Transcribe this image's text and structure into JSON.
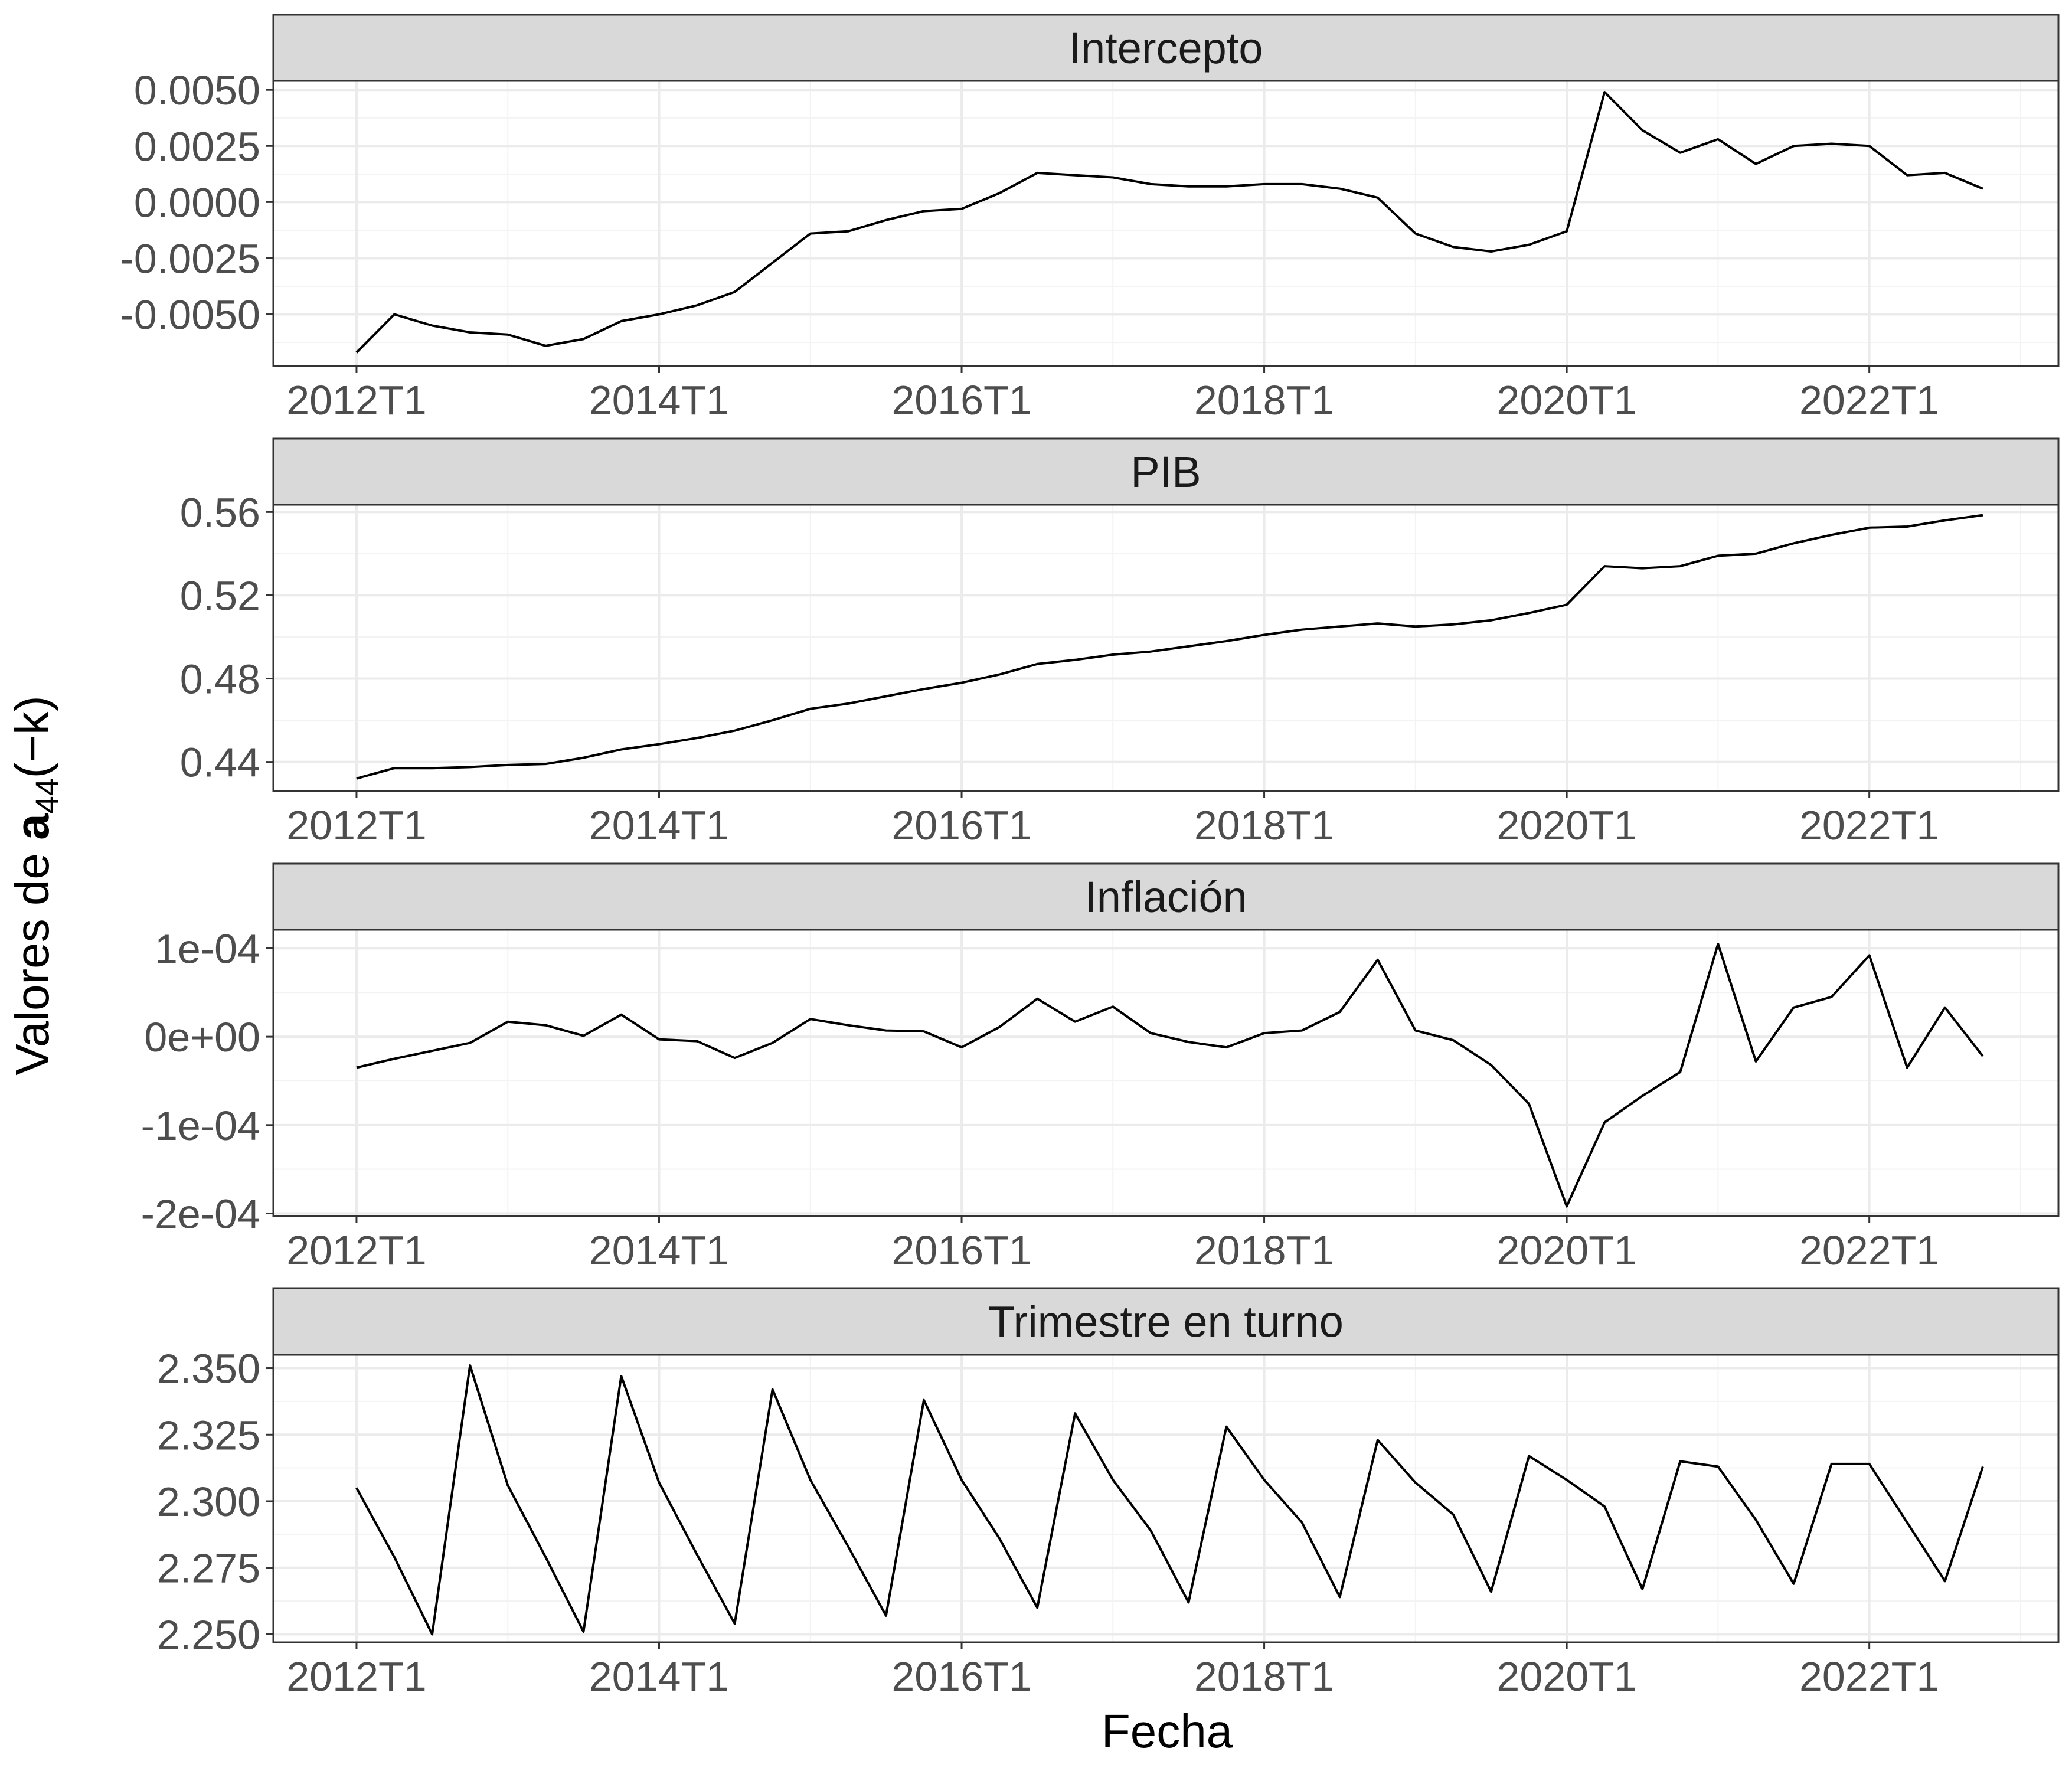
{
  "figure": {
    "xlabel": "Fecha",
    "ylabel_prefix": "Valores de ",
    "ylabel_bold": "a",
    "ylabel_sub": "44",
    "ylabel_suffix": "(−k)"
  },
  "chart_data": [
    {
      "type": "line",
      "title": "Intercepto",
      "x": [
        "2012T1",
        "2012T2",
        "2012T3",
        "2012T4",
        "2013T1",
        "2013T2",
        "2013T3",
        "2013T4",
        "2014T1",
        "2014T2",
        "2014T3",
        "2014T4",
        "2015T1",
        "2015T2",
        "2015T3",
        "2015T4",
        "2016T1",
        "2016T2",
        "2016T3",
        "2016T4",
        "2017T1",
        "2017T2",
        "2017T3",
        "2017T4",
        "2018T1",
        "2018T2",
        "2018T3",
        "2018T4",
        "2019T1",
        "2019T2",
        "2019T3",
        "2019T4",
        "2020T1",
        "2020T2",
        "2020T3",
        "2020T4",
        "2021T1",
        "2021T2",
        "2021T3",
        "2021T4",
        "2022T1",
        "2022T2",
        "2022T3",
        "2022T4"
      ],
      "values": [
        -0.0067,
        -0.005,
        -0.0055,
        -0.0058,
        -0.0059,
        -0.0064,
        -0.0061,
        -0.0053,
        -0.005,
        -0.0046,
        -0.004,
        -0.0027,
        -0.0014,
        -0.0013,
        -0.0008,
        -0.0004,
        -0.0003,
        0.0004,
        0.0013,
        0.0012,
        0.0011,
        0.0008,
        0.0007,
        0.0007,
        0.0008,
        0.0008,
        0.0006,
        0.0002,
        -0.0014,
        -0.002,
        -0.0022,
        -0.0019,
        -0.0013,
        0.0049,
        0.0032,
        0.0022,
        0.0028,
        0.0017,
        0.0025,
        0.0026,
        0.0025,
        0.0012,
        0.0013,
        0.0006
      ],
      "ylim": [
        -0.0073,
        0.0054
      ],
      "yticks": [
        -0.005,
        -0.0025,
        0,
        0.0025,
        0.005
      ],
      "yticklabels": [
        "-0.0050",
        "-0.0025",
        "0.0000",
        "0.0025",
        "0.0050"
      ],
      "ymin_grid": [
        -0.00625,
        -0.00375,
        -0.00125,
        0.00125,
        0.00375
      ]
    },
    {
      "type": "line",
      "title": "PIB",
      "x": [
        "2012T1",
        "2012T2",
        "2012T3",
        "2012T4",
        "2013T1",
        "2013T2",
        "2013T3",
        "2013T4",
        "2014T1",
        "2014T2",
        "2014T3",
        "2014T4",
        "2015T1",
        "2015T2",
        "2015T3",
        "2015T4",
        "2016T1",
        "2016T2",
        "2016T3",
        "2016T4",
        "2017T1",
        "2017T2",
        "2017T3",
        "2017T4",
        "2018T1",
        "2018T2",
        "2018T3",
        "2018T4",
        "2019T1",
        "2019T2",
        "2019T3",
        "2019T4",
        "2020T1",
        "2020T2",
        "2020T3",
        "2020T4",
        "2021T1",
        "2021T2",
        "2021T3",
        "2021T4",
        "2022T1",
        "2022T2",
        "2022T3",
        "2022T4"
      ],
      "values": [
        0.432,
        0.437,
        0.437,
        0.4375,
        0.4385,
        0.439,
        0.442,
        0.446,
        0.4485,
        0.4515,
        0.455,
        0.46,
        0.4655,
        0.468,
        0.4715,
        0.475,
        0.478,
        0.482,
        0.487,
        0.489,
        0.4915,
        0.493,
        0.4955,
        0.498,
        0.501,
        0.5035,
        0.505,
        0.5065,
        0.505,
        0.506,
        0.508,
        0.5115,
        0.5155,
        0.534,
        0.533,
        0.534,
        0.539,
        0.54,
        0.545,
        0.549,
        0.5525,
        0.553,
        0.556,
        0.5585
      ],
      "ylim": [
        0.426,
        0.5635
      ],
      "yticks": [
        0.44,
        0.48,
        0.52,
        0.56
      ],
      "yticklabels": [
        "0.44",
        "0.48",
        "0.52",
        "0.56"
      ],
      "ymin_grid": [
        0.46,
        0.5,
        0.54
      ]
    },
    {
      "type": "line",
      "title": "Inflación",
      "x": [
        "2012T1",
        "2012T2",
        "2012T3",
        "2012T4",
        "2013T1",
        "2013T2",
        "2013T3",
        "2013T4",
        "2014T1",
        "2014T2",
        "2014T3",
        "2014T4",
        "2015T1",
        "2015T2",
        "2015T3",
        "2015T4",
        "2016T1",
        "2016T2",
        "2016T3",
        "2016T4",
        "2017T1",
        "2017T2",
        "2017T3",
        "2017T4",
        "2018T1",
        "2018T2",
        "2018T3",
        "2018T4",
        "2019T1",
        "2019T2",
        "2019T3",
        "2019T4",
        "2020T1",
        "2020T2",
        "2020T3",
        "2020T4",
        "2021T1",
        "2021T2",
        "2021T3",
        "2021T4",
        "2022T1",
        "2022T2",
        "2022T3",
        "2022T4"
      ],
      "values": [
        -3.5e-05,
        -2.5e-05,
        -1.6e-05,
        -7e-06,
        1.7e-05,
        1.3e-05,
        1e-06,
        2.5e-05,
        -3e-06,
        -5e-06,
        -2.4e-05,
        -7e-06,
        2e-05,
        1.3e-05,
        7e-06,
        6e-06,
        -1.2e-05,
        1.1e-05,
        4.3e-05,
        1.7e-05,
        3.4e-05,
        4e-06,
        -6e-06,
        -1.2e-05,
        4e-06,
        7e-06,
        2.8e-05,
        8.7e-05,
        7e-06,
        -4e-06,
        -3.2e-05,
        -7.6e-05,
        -0.000192,
        -9.7e-05,
        -6.7e-05,
        -4e-05,
        0.000105,
        -2.8e-05,
        3.3e-05,
        4.5e-05,
        9.2e-05,
        -3.5e-05,
        3.3e-05,
        -2.2e-05
      ],
      "ylim": [
        -0.000203,
        0.000121
      ],
      "yticks": [
        -0.0002,
        -0.0001,
        0,
        0.0001
      ],
      "yticklabels": [
        "-2e-04",
        "-1e-04",
        "0e+00",
        "1e-04"
      ],
      "ymin_grid": [
        -0.00015,
        -5e-05,
        5e-05
      ]
    },
    {
      "type": "line",
      "title": "Trimestre en turno",
      "x": [
        "2012T1",
        "2012T2",
        "2012T3",
        "2012T4",
        "2013T1",
        "2013T2",
        "2013T3",
        "2013T4",
        "2014T1",
        "2014T2",
        "2014T3",
        "2014T4",
        "2015T1",
        "2015T2",
        "2015T3",
        "2015T4",
        "2016T1",
        "2016T2",
        "2016T3",
        "2016T4",
        "2017T1",
        "2017T2",
        "2017T3",
        "2017T4",
        "2018T1",
        "2018T2",
        "2018T3",
        "2018T4",
        "2019T1",
        "2019T2",
        "2019T3",
        "2019T4",
        "2020T1",
        "2020T2",
        "2020T3",
        "2020T4",
        "2021T1",
        "2021T2",
        "2021T3",
        "2021T4",
        "2022T1",
        "2022T2",
        "2022T3",
        "2022T4"
      ],
      "values": [
        2.305,
        2.279,
        2.25,
        2.351,
        2.306,
        2.279,
        2.251,
        2.347,
        2.307,
        2.28,
        2.254,
        2.342,
        2.308,
        2.283,
        2.257,
        2.338,
        2.308,
        2.286,
        2.26,
        2.333,
        2.308,
        2.289,
        2.262,
        2.328,
        2.308,
        2.292,
        2.264,
        2.323,
        2.307,
        2.295,
        2.266,
        2.317,
        2.308,
        2.298,
        2.267,
        2.315,
        2.313,
        2.293,
        2.269,
        2.314,
        2.314,
        2.292,
        2.27,
        2.313
      ],
      "ylim": [
        2.247,
        2.355
      ],
      "yticks": [
        2.25,
        2.275,
        2.3,
        2.325,
        2.35
      ],
      "yticklabels": [
        "2.250",
        "2.275",
        "2.300",
        "2.325",
        "2.350"
      ],
      "ymin_grid": [
        2.2625,
        2.2875,
        2.3125,
        2.3375
      ]
    }
  ],
  "x_axis": {
    "ticks": [
      "2012T1",
      "2014T1",
      "2016T1",
      "2018T1",
      "2020T1",
      "2022T1"
    ],
    "tick_index": [
      0,
      8,
      16,
      24,
      32,
      40
    ],
    "minor_index": [
      4,
      12,
      20,
      28,
      36,
      44
    ],
    "xlim_index": [
      -2.2,
      45.0
    ]
  },
  "colors": {
    "line": "#000000",
    "strip_fill": "#d9d9d9",
    "strip_border": "#333333",
    "grid_major": "#ebebeb",
    "grid_minor": "#f3f3f3",
    "panel_border": "#333333",
    "tick_text": "#4d4d4d",
    "axis_title": "#000000"
  }
}
